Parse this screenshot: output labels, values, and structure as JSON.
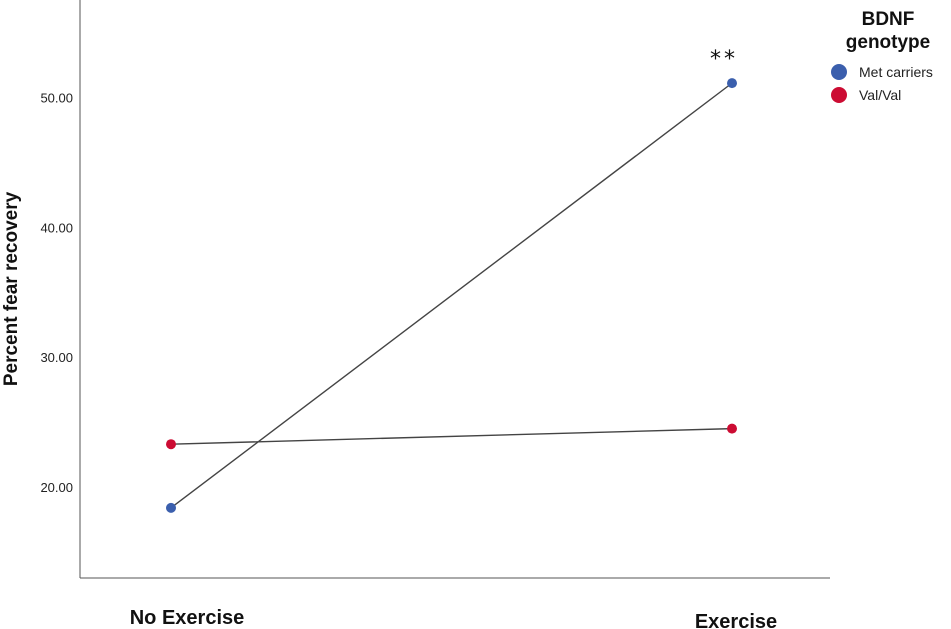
{
  "chart_data": {
    "type": "line",
    "categories": [
      "No Exercise",
      "Exercise"
    ],
    "ylabel": "Percent fear recovery",
    "xlabel": "",
    "ylim": [
      13.0,
      57.5
    ],
    "yticks": [
      "20.00",
      "30.00",
      "40.00",
      "50.00"
    ],
    "ytick_values": [
      20,
      30,
      40,
      50
    ],
    "legend": {
      "title_line1": "BDNF",
      "title_line2": "genotype",
      "placement": "top-right"
    },
    "series": [
      {
        "name": "Met carriers",
        "values": [
          18.4,
          51.1
        ],
        "color": "#3b5fad"
      },
      {
        "name": "Val/Val",
        "values": [
          23.3,
          24.5
        ],
        "color": "#cc0c33"
      }
    ],
    "annotation": {
      "text": "**",
      "category": "Exercise"
    },
    "line_color": "#444444"
  }
}
